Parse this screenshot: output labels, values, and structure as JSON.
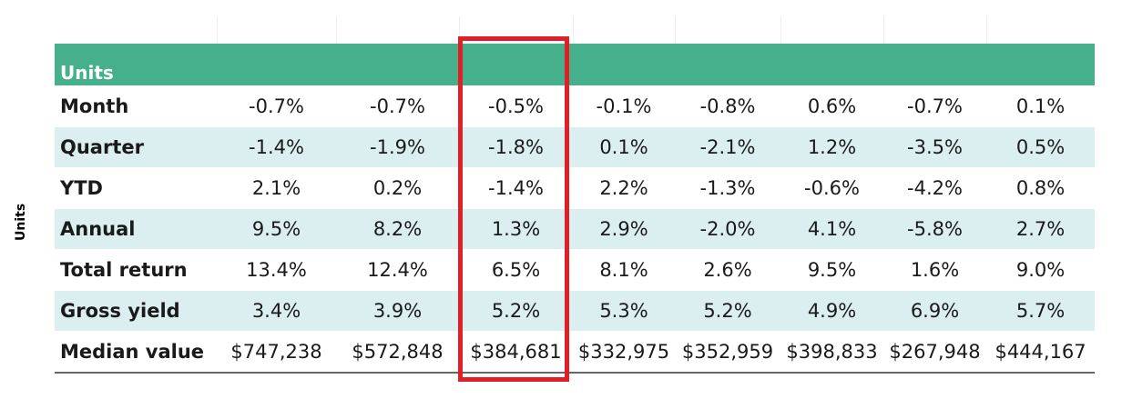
{
  "side_label": "Units",
  "table": {
    "section_title": "Units",
    "rows": [
      {
        "label": "Month",
        "values": [
          "-0.7%",
          "-0.7%",
          "-0.5%",
          "-0.1%",
          "-0.8%",
          "0.6%",
          "-0.7%",
          "0.1%"
        ]
      },
      {
        "label": "Quarter",
        "values": [
          "-1.4%",
          "-1.9%",
          "-1.8%",
          "0.1%",
          "-2.1%",
          "1.2%",
          "-3.5%",
          "0.5%"
        ]
      },
      {
        "label": "YTD",
        "values": [
          "2.1%",
          "0.2%",
          "-1.4%",
          "2.2%",
          "-1.3%",
          "-0.6%",
          "-4.2%",
          "0.8%"
        ]
      },
      {
        "label": "Annual",
        "values": [
          "9.5%",
          "8.2%",
          "1.3%",
          "2.9%",
          "-2.0%",
          "4.1%",
          "-5.8%",
          "2.7%"
        ]
      },
      {
        "label": "Total return",
        "values": [
          "13.4%",
          "12.4%",
          "6.5%",
          "8.1%",
          "2.6%",
          "9.5%",
          "1.6%",
          "9.0%"
        ]
      },
      {
        "label": "Gross yield",
        "values": [
          "3.4%",
          "3.9%",
          "5.2%",
          "5.3%",
          "5.2%",
          "4.9%",
          "6.9%",
          "5.7%"
        ]
      },
      {
        "label": "Median value",
        "values": [
          "$747,238",
          "$572,848",
          "$384,681",
          "$332,975",
          "$352,959",
          "$398,833",
          "$267,948",
          "$444,167"
        ]
      }
    ]
  },
  "colors": {
    "header_bg": "#46b08d",
    "shaded_row": "#dbeef0",
    "highlight": "#e01f26"
  }
}
